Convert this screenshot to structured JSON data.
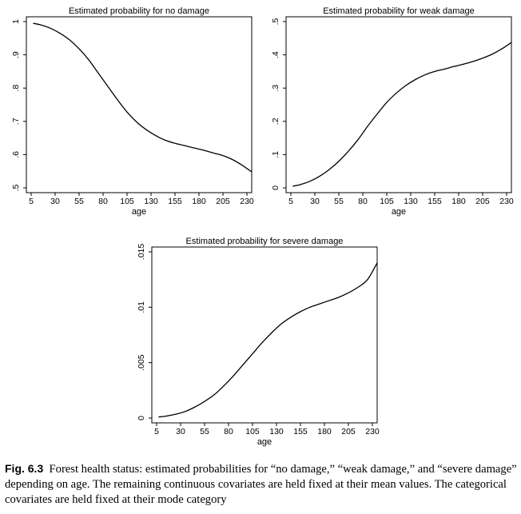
{
  "chart_data": [
    {
      "type": "line",
      "title": "Estimated probability for no damage",
      "xlabel": "age",
      "ylabel": "",
      "xlim": [
        5,
        230
      ],
      "ylim": [
        0.5,
        1.0
      ],
      "x_ticks": [
        "5",
        "30",
        "55",
        "80",
        "105",
        "130",
        "155",
        "180",
        "205",
        "230"
      ],
      "y_ticks": [
        ".5",
        ".6",
        ".7",
        ".8",
        ".9",
        "1"
      ],
      "series": [
        {
          "x": [
            7,
            15,
            25,
            35,
            45,
            55,
            65,
            75,
            85,
            95,
            105,
            115,
            125,
            135,
            145,
            155,
            165,
            175,
            185,
            195,
            205,
            215,
            225,
            235
          ],
          "values": [
            0.995,
            0.99,
            0.98,
            0.965,
            0.945,
            0.918,
            0.885,
            0.845,
            0.805,
            0.765,
            0.728,
            0.698,
            0.675,
            0.657,
            0.643,
            0.634,
            0.627,
            0.62,
            0.613,
            0.605,
            0.597,
            0.585,
            0.568,
            0.548
          ]
        }
      ]
    },
    {
      "type": "line",
      "title": "Estimated probability for weak damage",
      "xlabel": "age",
      "ylabel": "",
      "xlim": [
        5,
        230
      ],
      "ylim": [
        0,
        0.5
      ],
      "x_ticks": [
        "5",
        "30",
        "55",
        "80",
        "105",
        "130",
        "155",
        "180",
        "205",
        "230"
      ],
      "y_ticks": [
        "0",
        ".1",
        ".2",
        ".3",
        ".4",
        ".5"
      ],
      "series": [
        {
          "x": [
            7,
            15,
            25,
            35,
            45,
            55,
            65,
            75,
            85,
            95,
            105,
            115,
            125,
            135,
            145,
            155,
            165,
            175,
            185,
            195,
            205,
            215,
            225,
            235
          ],
          "values": [
            0.005,
            0.01,
            0.02,
            0.035,
            0.055,
            0.08,
            0.11,
            0.145,
            0.185,
            0.222,
            0.257,
            0.285,
            0.308,
            0.326,
            0.34,
            0.35,
            0.357,
            0.365,
            0.372,
            0.38,
            0.39,
            0.402,
            0.418,
            0.437
          ]
        }
      ]
    },
    {
      "type": "line",
      "title": "Estimated probability for severe damage",
      "xlabel": "age",
      "ylabel": "",
      "xlim": [
        5,
        230
      ],
      "ylim": [
        0,
        0.015
      ],
      "x_ticks": [
        "5",
        "30",
        "55",
        "80",
        "105",
        "130",
        "155",
        "180",
        "205",
        "230"
      ],
      "y_ticks": [
        "0",
        ".005",
        ".01",
        ".015"
      ],
      "series": [
        {
          "x": [
            7,
            15,
            25,
            35,
            45,
            55,
            65,
            75,
            85,
            95,
            105,
            115,
            125,
            135,
            145,
            155,
            165,
            175,
            185,
            195,
            205,
            215,
            225,
            235
          ],
          "values": [
            0.0001,
            0.00018,
            0.00035,
            0.0006,
            0.001,
            0.0015,
            0.0021,
            0.0029,
            0.0038,
            0.0048,
            0.0058,
            0.0068,
            0.0077,
            0.0085,
            0.0091,
            0.0096,
            0.01,
            0.0103,
            0.0106,
            0.0109,
            0.0113,
            0.0118,
            0.0125,
            0.014
          ]
        }
      ]
    }
  ],
  "caption": {
    "label": "Fig. 6.3",
    "text": "Forest health status: estimated probabilities for “no damage,” “weak damage,” and “severe damage” depending on age. The remaining continuous covariates are held fixed at their mean values. The categorical covariates are held fixed at their mode category"
  }
}
